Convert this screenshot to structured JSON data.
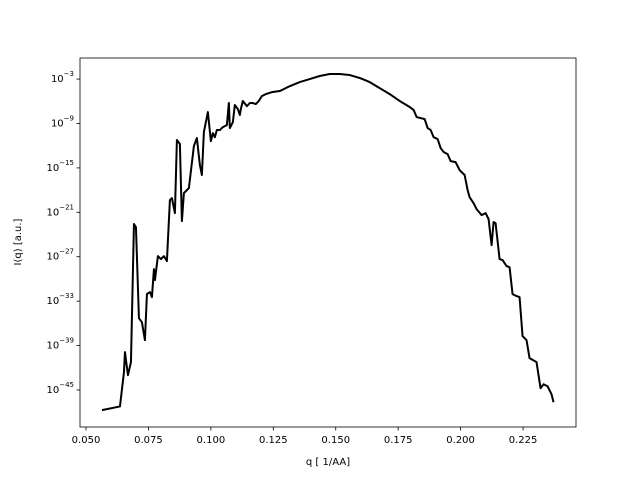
{
  "chart_data": {
    "type": "line",
    "xlabel": "q [ 1/AA]",
    "ylabel": "I(q) [a.u.]",
    "yscale": "log",
    "xlim": [
      0.0476,
      0.2462
    ],
    "ylim": [
      1e-50,
      0.7
    ],
    "xticks": [
      {
        "value": 0.05,
        "label": "0.050"
      },
      0.075,
      {
        "value": 0.1,
        "label": "0.100"
      },
      0.125,
      {
        "value": 0.15,
        "label": "0.150"
      },
      0.175,
      {
        "value": 0.2,
        "label": "0.200"
      },
      0.225
    ],
    "yticks": [
      {
        "value": 1e-45,
        "label": "10−45"
      },
      {
        "value": 1e-39,
        "label": "10−39"
      },
      {
        "value": 1e-33,
        "label": "10−33"
      },
      {
        "value": 1e-27,
        "label": "10−27"
      },
      {
        "value": 1e-21,
        "label": "10−21"
      },
      {
        "value": 1e-15,
        "label": "10−15"
      },
      {
        "value": 1e-09,
        "label": "10−9"
      },
      {
        "value": 0.001,
        "label": "10−3"
      }
    ],
    "x": [
      0.0564,
      0.0636,
      0.0652,
      0.0656,
      0.0668,
      0.068,
      0.0692,
      0.07,
      0.0712,
      0.0724,
      0.0736,
      0.0744,
      0.0756,
      0.0764,
      0.0772,
      0.0776,
      0.0788,
      0.08,
      0.0812,
      0.0824,
      0.0836,
      0.0844,
      0.0856,
      0.0864,
      0.0876,
      0.0884,
      0.0892,
      0.0912,
      0.0932,
      0.0944,
      0.0956,
      0.0964,
      0.0972,
      0.0984,
      0.0988,
      0.1,
      0.1008,
      0.1016,
      0.1024,
      0.1036,
      0.1048,
      0.1064,
      0.1072,
      0.1076,
      0.1088,
      0.1096,
      0.1108,
      0.1116,
      0.112,
      0.1128,
      0.1144,
      0.1156,
      0.1168,
      0.118,
      0.1192,
      0.1204,
      0.122,
      0.1244,
      0.1276,
      0.1316,
      0.1356,
      0.1396,
      0.1436,
      0.1476,
      0.1516,
      0.1556,
      0.1596,
      0.1636,
      0.1676,
      0.1716,
      0.1756,
      0.1796,
      0.1812,
      0.1824,
      0.1856,
      0.1868,
      0.188,
      0.1892,
      0.1908,
      0.192,
      0.1932,
      0.1948,
      0.196,
      0.198,
      0.1996,
      0.2016,
      0.2028,
      0.2036,
      0.2052,
      0.2064,
      0.2084,
      0.21,
      0.2112,
      0.2124,
      0.2132,
      0.214,
      0.2156,
      0.2168,
      0.2184,
      0.2196,
      0.2208,
      0.2224,
      0.2236,
      0.2248,
      0.2264,
      0.2276,
      0.2304,
      0.232,
      0.2332,
      0.2348,
      0.2364,
      0.2372
    ],
    "series": [
      {
        "color": "#000000",
        "values": [
          1.9e-48,
          6e-48,
          2.6e-43,
          1.3e-40,
          1e-43,
          5.8e-42,
          2.6e-23,
          1e-23,
          5e-36,
          1.4e-36,
          5.4e-39,
          9e-33,
          1.7e-32,
          3.5e-33,
          2.1e-29,
          7e-31,
          1.2e-27,
          4.8e-28,
          1.2e-27,
          2.6e-28,
          4.5e-20,
          8.3e-20,
          7.8e-22,
          5.8e-12,
          1.7e-12,
          6.5e-23,
          3.9e-19,
          1.9e-18,
          8.9e-13,
          1.1e-11,
          2.4e-15,
          1.1e-16,
          6.9e-11,
          7.3e-09,
          3.5e-08,
          4.2e-12,
          5e-11,
          1.4e-11,
          1.3e-10,
          1.3e-10,
          3.2e-10,
          6e-10,
          5.8e-07,
          2.4e-10,
          1.5e-09,
          3.1e-07,
          8.9e-08,
          1.4e-08,
          8.9e-08,
          1.1e-06,
          2.2e-07,
          5.8e-07,
          5.8e-07,
          4.2e-07,
          1.1e-06,
          5e-06,
          9.3e-06,
          1.7e-05,
          2.4e-05,
          0.00011,
          0.00039,
          0.001,
          0.0026,
          0.0048,
          0.0048,
          0.0035,
          0.0014,
          0.00039,
          6e-05,
          9.3e-06,
          1.1e-06,
          1.7e-07,
          6.5e-08,
          7.3e-09,
          3.9e-09,
          2.4e-10,
          1.3e-10,
          1.4e-11,
          7.8e-12,
          4.8e-13,
          1.4e-13,
          7.3e-14,
          8.3e-15,
          6e-15,
          5e-16,
          1.1e-16,
          1e-18,
          1.1e-19,
          1.7e-20,
          2.7e-21,
          4.2e-22,
          7.8e-22,
          1.2e-22,
          3.7e-26,
          4.8e-23,
          3.5e-23,
          4.8e-28,
          3.5e-28,
          5.4e-29,
          3.9e-29,
          9e-33,
          4.8e-33,
          3.5e-33,
          1.9e-38,
          5.4e-39,
          2e-41,
          5.8e-42,
          1.7e-45,
          6e-45,
          3.2e-45,
          2.7e-46,
          2.2e-47
        ]
      }
    ]
  }
}
